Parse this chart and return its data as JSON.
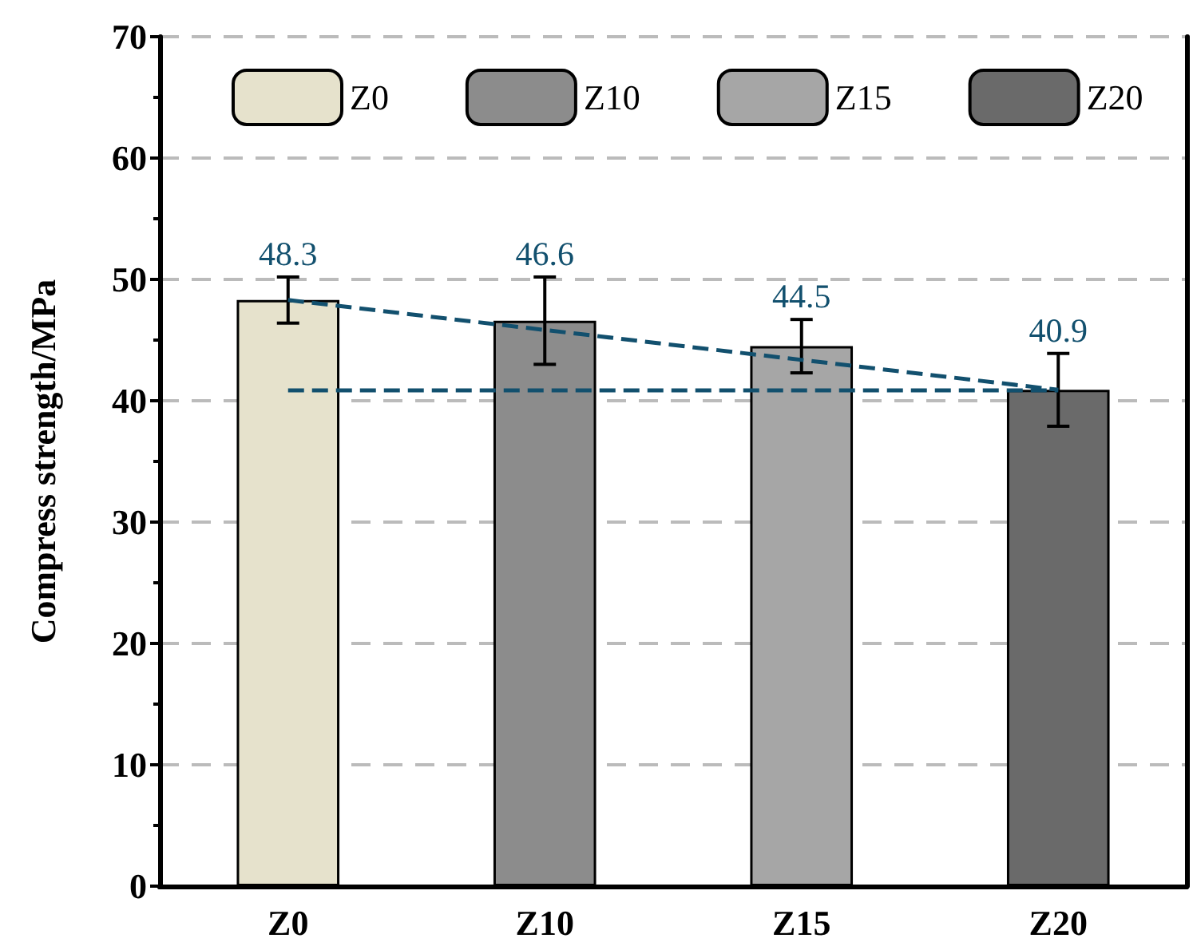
{
  "chart_data": {
    "type": "bar",
    "ylabel": "Compress strength/MPa",
    "categories": [
      "Z0",
      "Z10",
      "Z15",
      "Z20"
    ],
    "series": [
      {
        "name": "Z0",
        "color": "#e6e2cc",
        "values": [
          48.3,
          null,
          null,
          null
        ],
        "value_labels": [
          "48.3",
          null,
          null,
          null
        ],
        "errors": [
          1.9,
          null,
          null,
          null
        ]
      },
      {
        "name": "Z10",
        "color": "#8c8c8c",
        "values": [
          null,
          46.6,
          null,
          null
        ],
        "value_labels": [
          null,
          "46.6",
          null,
          null
        ],
        "errors": [
          null,
          3.6,
          null,
          null
        ]
      },
      {
        "name": "Z15",
        "color": "#a6a6a6",
        "values": [
          null,
          null,
          44.5,
          null
        ],
        "value_labels": [
          null,
          null,
          "44.5",
          null
        ],
        "errors": [
          null,
          null,
          2.2,
          null
        ]
      },
      {
        "name": "Z20",
        "color": "#6a6a6a",
        "values": [
          null,
          null,
          null,
          40.9
        ],
        "value_labels": [
          null,
          null,
          null,
          "40.9"
        ],
        "errors": [
          null,
          null,
          null,
          3.0
        ]
      },
      {
        "type": "line",
        "color": "#12506e",
        "x": [
          "Z0",
          "Z20"
        ],
        "values": [
          48.3,
          40.9
        ],
        "line_style": "dashed"
      }
    ],
    "ref_lines": [
      {
        "axis": "y",
        "value": 40.9,
        "color": "#12506e",
        "line_style": "dashed"
      }
    ],
    "ylim": [
      0,
      70
    ],
    "yticks": [
      0,
      10,
      20,
      30,
      40,
      50,
      60,
      70
    ],
    "grid": "y",
    "legend": "top"
  }
}
